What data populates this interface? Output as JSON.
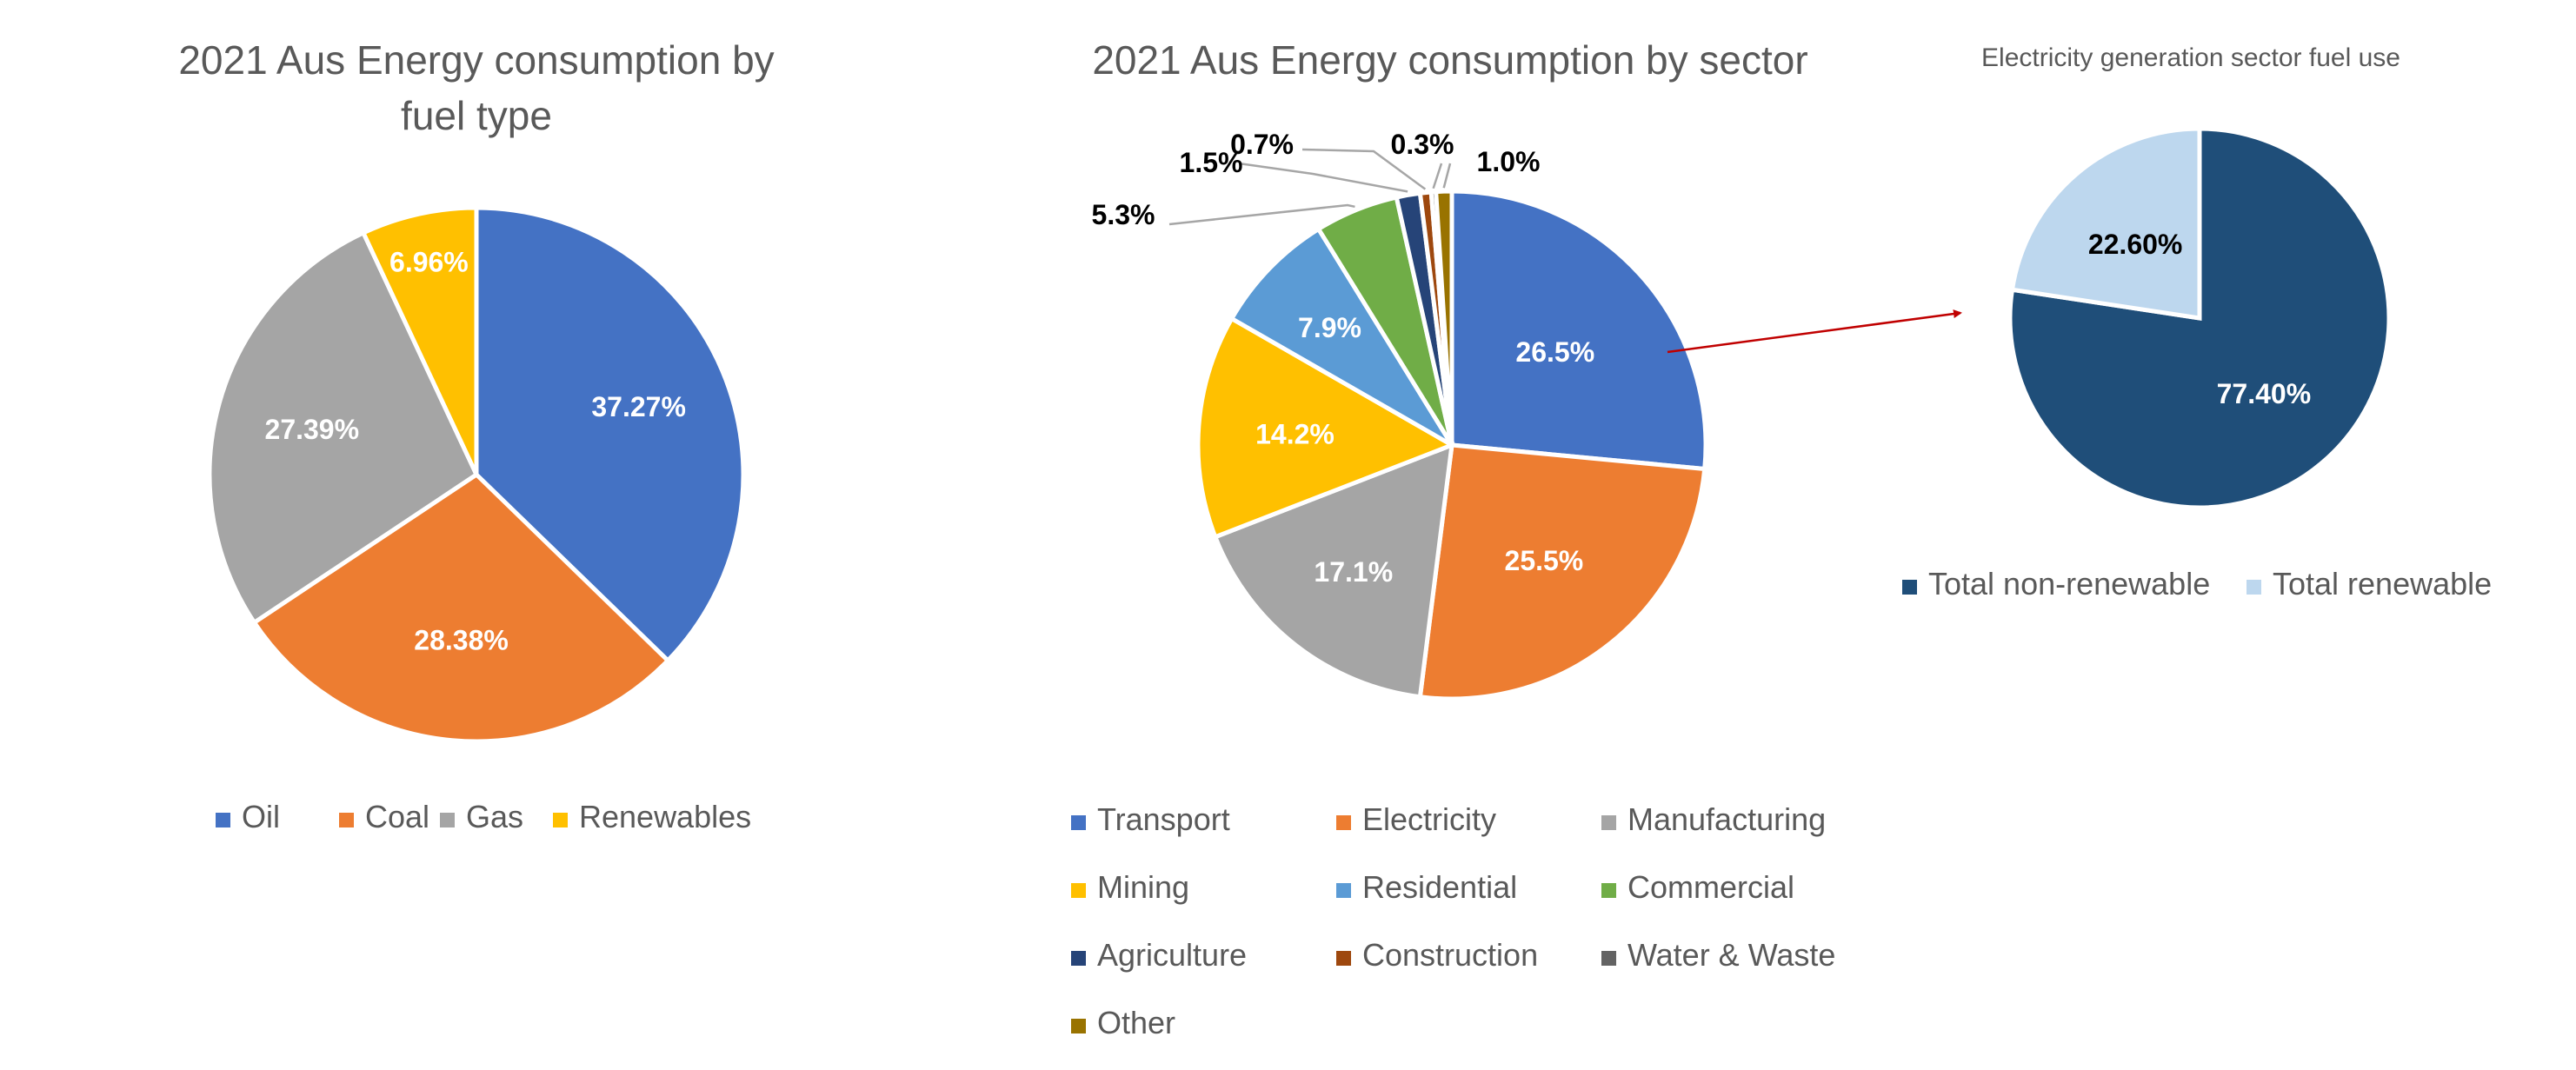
{
  "colors": {
    "oil": "#4472C4",
    "coal": "#ED7D31",
    "gas": "#A5A5A5",
    "renewables": "#FFC000",
    "transport": "#4472C4",
    "electricity": "#ED7D31",
    "manufacturing": "#A5A5A5",
    "mining": "#FFC000",
    "residential": "#5B9BD5",
    "commercial": "#70AD47",
    "agriculture": "#264478",
    "construction": "#9E480E",
    "water_waste": "#636363",
    "other": "#997300",
    "non_renewable": "#1F4E79",
    "renewable": "#BDD7EE",
    "arrow": "#C00000"
  },
  "chart_data": [
    {
      "type": "pie",
      "title": "2021 Aus Energy consumption by fuel type",
      "categories": [
        "Oil",
        "Coal",
        "Gas",
        "Renewables"
      ],
      "values": [
        37.27,
        28.38,
        27.39,
        6.96
      ],
      "labels": [
        "37.27%",
        "28.38%",
        "27.39%",
        "6.96%"
      ],
      "legend": "bottom"
    },
    {
      "type": "pie",
      "title": "2021 Aus Energy consumption by sector",
      "categories": [
        "Transport",
        "Electricity",
        "Manufacturing",
        "Mining",
        "Residential",
        "Commercial",
        "Agriculture",
        "Construction",
        "Water & Waste",
        "Other"
      ],
      "values": [
        26.5,
        25.5,
        17.1,
        14.2,
        7.9,
        5.3,
        1.5,
        0.7,
        0.3,
        1.0
      ],
      "labels": [
        "26.5%",
        "25.5%",
        "17.1%",
        "14.2%",
        "7.9%",
        "5.3%",
        "1.5%",
        "0.7%",
        "0.3%",
        "1.0%"
      ],
      "legend": "bottom"
    },
    {
      "type": "pie",
      "title": "Electricity generation sector fuel use",
      "categories": [
        "Total non-renewable",
        "Total renewable"
      ],
      "values": [
        77.4,
        22.6
      ],
      "labels": [
        "77.40%",
        "22.60%"
      ],
      "legend": "bottom"
    }
  ]
}
